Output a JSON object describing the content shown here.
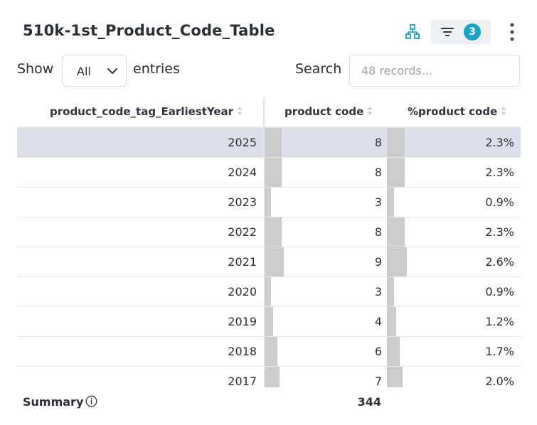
{
  "header": {
    "title": "510k-1st_Product_Code_Table",
    "filter_count": "3",
    "icons": [
      "hierarchy-icon",
      "filter-icon",
      "more-vertical-icon"
    ],
    "accent": "#1aa3c4"
  },
  "controls": {
    "show_label": "Show",
    "page_size": "All",
    "entries_label": "entries",
    "search_label": "Search",
    "search_placeholder": "48 records..."
  },
  "table": {
    "columns": [
      "product_code_tag_EarliestYear",
      "product code",
      "%product code"
    ],
    "rows": [
      {
        "year": "2025",
        "count": "8",
        "pct": "2.3%",
        "count_bar": 8,
        "pct_bar": 2.3,
        "selected": true
      },
      {
        "year": "2024",
        "count": "8",
        "pct": "2.3%",
        "count_bar": 8,
        "pct_bar": 2.3
      },
      {
        "year": "2023",
        "count": "3",
        "pct": "0.9%",
        "count_bar": 3,
        "pct_bar": 0.9
      },
      {
        "year": "2022",
        "count": "8",
        "pct": "2.3%",
        "count_bar": 8,
        "pct_bar": 2.3
      },
      {
        "year": "2021",
        "count": "9",
        "pct": "2.6%",
        "count_bar": 9,
        "pct_bar": 2.6
      },
      {
        "year": "2020",
        "count": "3",
        "pct": "0.9%",
        "count_bar": 3,
        "pct_bar": 0.9
      },
      {
        "year": "2019",
        "count": "4",
        "pct": "1.2%",
        "count_bar": 4,
        "pct_bar": 1.2
      },
      {
        "year": "2018",
        "count": "6",
        "pct": "1.7%",
        "count_bar": 6,
        "pct_bar": 1.7
      },
      {
        "year": "2017",
        "count": "7",
        "pct": "2.0%",
        "count_bar": 7,
        "pct_bar": 2.0
      }
    ],
    "summary_label": "Summary",
    "summary_total": "344",
    "bar_color": "#cccccc",
    "selected_row_color": "#dde0ea"
  }
}
